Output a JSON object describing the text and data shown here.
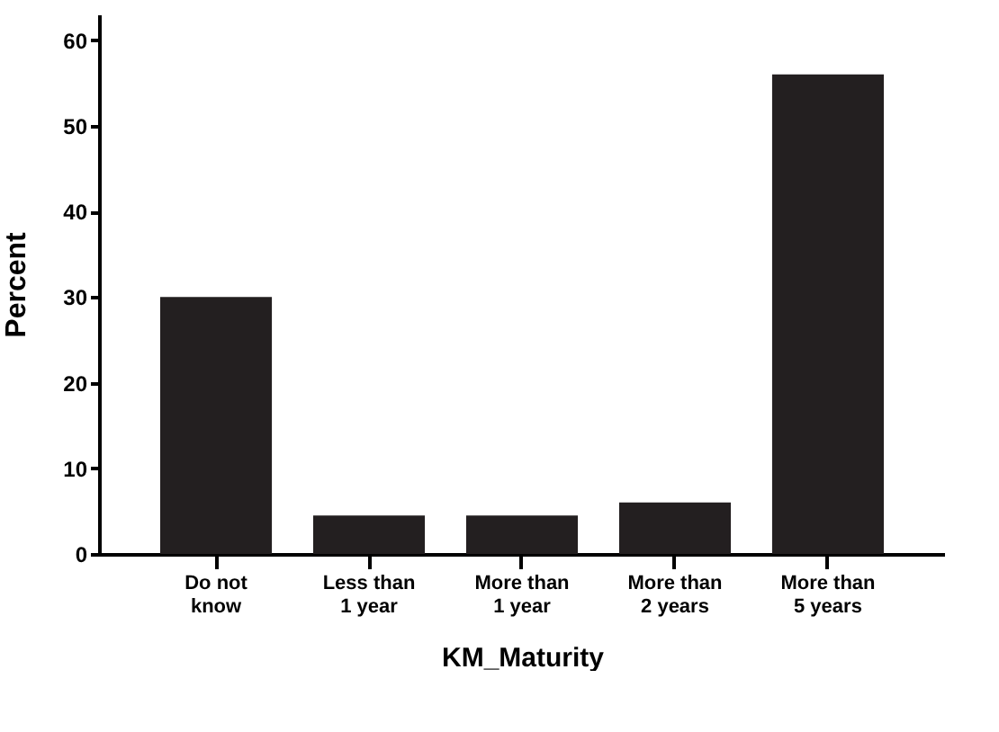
{
  "chart_data": {
    "type": "bar",
    "xlabel": "KM_Maturity",
    "ylabel": "Percent",
    "categories": [
      "Do not\nknow",
      "Less than\n1 year",
      "More than\n1 year",
      "More than\n2 years",
      "More than\n5 years"
    ],
    "values": [
      30,
      4.5,
      4.5,
      6,
      56
    ],
    "color": "#231f20",
    "ylim": [
      0,
      63
    ],
    "yticks": [
      0,
      10,
      20,
      30,
      40,
      50,
      60
    ],
    "grid": false
  }
}
